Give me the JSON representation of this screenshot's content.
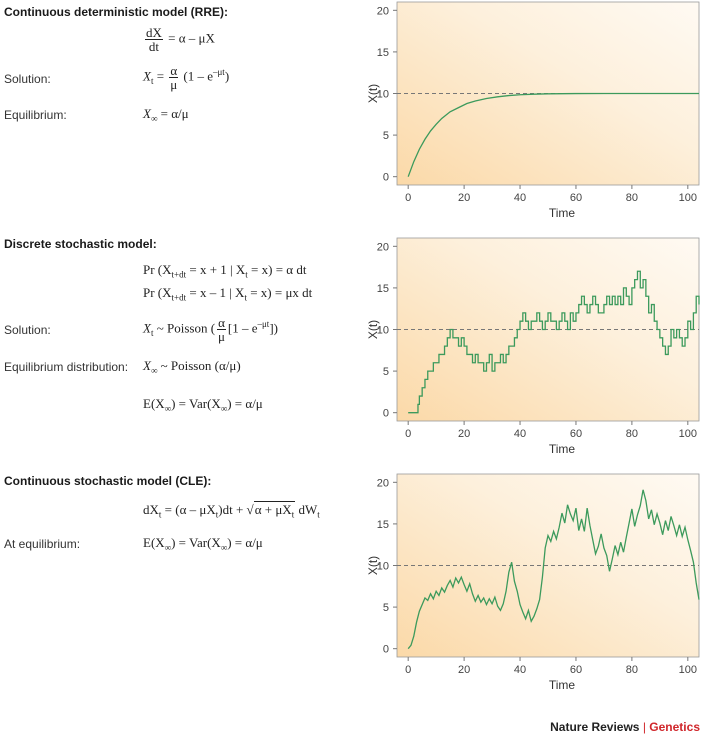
{
  "sections": [
    {
      "title": "Continuous deterministic model (RRE):",
      "solution_label": "Solution:",
      "equilibrium_label": "Equilibrium:",
      "ode_num": "dX",
      "ode_den": "dt",
      "ode_rhs": "= α – μX",
      "sol_lhs": "X",
      "sol_sub": "t",
      "sol_mid": "=",
      "sol_num": "α",
      "sol_den": "μ",
      "sol_rest": "(1 – e",
      "sol_sup": "–μt",
      "sol_close": ")",
      "eq_text": "= α/μ",
      "eq_lhs": "X",
      "eq_sub": "∞"
    },
    {
      "title": "Discrete stochastic model:",
      "solution_label": "Solution:",
      "equilibrium_label": "Equilibrium distribution:",
      "pr1_a": "Pr (X",
      "pr1_sub": "t+dt",
      "pr1_b": " = x + 1 | X",
      "pr1_sub2": "t",
      "pr1_c": " = x) = α dt",
      "pr2_a": "Pr (X",
      "pr2_sub": "t+dt",
      "pr2_b": " = x – 1 | X",
      "pr2_sub2": "t",
      "pr2_c": " = x) = μx dt",
      "sol_lhs": "X",
      "sol_sub": "t",
      "sol_mid": " ~ Poisson ",
      "sol_num": "α",
      "sol_den": "μ",
      "sol_rest": "[1 – e",
      "sol_sup": "–μt",
      "sol_close": "]",
      "eqd_lhs": "X",
      "eqd_sub": "∞",
      "eqd_rest": " ~ Poisson (α/μ)",
      "ev_text": "E(X",
      "ev_sub": "∞",
      "ev_mid": ") = Var(X",
      "ev_sub2": "∞",
      "ev_end": ") = α/μ"
    },
    {
      "title": "Continuous stochastic model (CLE):",
      "equilibrium_label": "At equilibrium:",
      "cle_a": "dX",
      "cle_sub": "t",
      "cle_b": " = (α – μX",
      "cle_sub2": "t",
      "cle_c": ")dt + ",
      "cle_root_a": "α + μX",
      "cle_root_sub": "t",
      "cle_d": " dW",
      "cle_sub3": "t",
      "ev_text": "E(X",
      "ev_sub": "∞",
      "ev_mid": ") = Var(X",
      "ev_sub2": "∞",
      "ev_end": ") = α/μ"
    }
  ],
  "chart_data": [
    {
      "type": "line",
      "xlabel": "Time",
      "ylabel": "X(t)",
      "xlim": [
        -4,
        104
      ],
      "ylim": [
        -1,
        21
      ],
      "xticks": [
        0,
        20,
        40,
        60,
        80,
        100
      ],
      "yticks": [
        0,
        5,
        10,
        15,
        20
      ],
      "equilibrium": 10,
      "series": [
        {
          "x": [
            0,
            2,
            4,
            6,
            8,
            10,
            12,
            15,
            18,
            21,
            24,
            28,
            32,
            36,
            40,
            45,
            50,
            60,
            70,
            80,
            90,
            100,
            104
          ],
          "y": [
            0,
            1.8,
            3.3,
            4.5,
            5.5,
            6.3,
            7.0,
            7.8,
            8.3,
            8.8,
            9.1,
            9.4,
            9.6,
            9.75,
            9.85,
            9.92,
            9.96,
            9.99,
            10,
            10,
            10,
            10,
            10
          ]
        }
      ],
      "color": "#3c9a5c"
    },
    {
      "type": "line",
      "step": true,
      "xlabel": "Time",
      "ylabel": "X(t)",
      "xlim": [
        -4,
        104
      ],
      "ylim": [
        -1,
        21
      ],
      "xticks": [
        0,
        20,
        40,
        60,
        80,
        100
      ],
      "yticks": [
        0,
        5,
        10,
        15,
        20
      ],
      "equilibrium": 10,
      "series": [
        {
          "x": [
            0,
            3,
            3.5,
            4,
            5,
            6,
            7,
            8,
            9,
            10,
            11,
            12,
            13,
            14,
            15,
            16,
            17,
            18,
            19,
            20,
            21,
            22,
            23,
            24,
            25,
            26,
            27,
            28,
            29,
            30,
            31,
            32,
            33,
            34,
            35,
            36,
            37,
            38,
            39,
            40,
            41,
            42,
            43,
            44,
            45,
            46,
            47,
            48,
            49,
            50,
            51,
            52,
            53,
            54,
            55,
            56,
            57,
            58,
            59,
            60,
            61,
            62,
            63,
            64,
            65,
            66,
            67,
            68,
            69,
            70,
            71,
            72,
            73,
            74,
            75,
            76,
            77,
            78,
            79,
            80,
            81,
            82,
            83,
            84,
            85,
            86,
            87,
            88,
            89,
            90,
            91,
            92,
            93,
            94,
            95,
            96,
            97,
            98,
            99,
            100,
            101,
            102,
            103,
            104
          ],
          "y": [
            0,
            0,
            1,
            2,
            3,
            4,
            5,
            5,
            6,
            6,
            7,
            7,
            8,
            9,
            10,
            9,
            9,
            8,
            9,
            8,
            7,
            7,
            6,
            7,
            6,
            6,
            5,
            6,
            7,
            5,
            6,
            6,
            7,
            6,
            7,
            8,
            8,
            9,
            10,
            11,
            12,
            11,
            10,
            11,
            11,
            12,
            11,
            10,
            11,
            12,
            11,
            11,
            10,
            11,
            12,
            11,
            10,
            12,
            11,
            12,
            13,
            14,
            13,
            12,
            13,
            14,
            13,
            12,
            12,
            13,
            14,
            13,
            14,
            13,
            14,
            13,
            15,
            14,
            13,
            15,
            16,
            17,
            15,
            16,
            14,
            12,
            13,
            11,
            10,
            9,
            8,
            7,
            8,
            10,
            9,
            10,
            9,
            8,
            9,
            11,
            10,
            12,
            14,
            13
          ]
        }
      ],
      "color": "#3c9a5c"
    },
    {
      "type": "line",
      "xlabel": "Time",
      "ylabel": "X(t)",
      "xlim": [
        -4,
        104
      ],
      "ylim": [
        -1,
        21
      ],
      "xticks": [
        0,
        20,
        40,
        60,
        80,
        100
      ],
      "yticks": [
        0,
        5,
        10,
        15,
        20
      ],
      "equilibrium": 10,
      "series": [
        {
          "x": [
            0,
            1,
            2,
            3,
            4,
            5,
            6,
            7,
            8,
            9,
            10,
            11,
            12,
            13,
            14,
            15,
            16,
            17,
            18,
            19,
            20,
            21,
            22,
            23,
            24,
            25,
            26,
            27,
            28,
            29,
            30,
            31,
            32,
            33,
            34,
            35,
            36,
            37,
            38,
            39,
            40,
            41,
            42,
            43,
            44,
            45,
            46,
            47,
            48,
            49,
            50,
            51,
            52,
            53,
            54,
            55,
            56,
            57,
            58,
            59,
            60,
            61,
            62,
            63,
            64,
            65,
            66,
            67,
            68,
            69,
            70,
            71,
            72,
            73,
            74,
            75,
            76,
            77,
            78,
            79,
            80,
            81,
            82,
            83,
            84,
            85,
            86,
            87,
            88,
            89,
            90,
            91,
            92,
            93,
            94,
            95,
            96,
            97,
            98,
            99,
            100,
            101,
            102,
            103,
            104
          ],
          "y": [
            0,
            0.4,
            1.5,
            3.2,
            4.5,
            5.3,
            6.1,
            5.8,
            6.6,
            6.0,
            6.9,
            6.4,
            7.3,
            6.8,
            7.6,
            8.2,
            7.4,
            8.5,
            7.9,
            8.6,
            7.7,
            6.9,
            7.8,
            6.6,
            5.7,
            6.4,
            5.6,
            6.1,
            5.3,
            6.0,
            5.4,
            6.2,
            5.1,
            4.6,
            5.4,
            6.9,
            9.2,
            10.4,
            8.1,
            6.9,
            5.3,
            4.4,
            3.6,
            4.6,
            3.3,
            3.9,
            4.8,
            5.9,
            8.6,
            12.1,
            13.6,
            12.9,
            14.1,
            13.2,
            14.6,
            16.3,
            15.1,
            17.3,
            16.2,
            15.4,
            16.9,
            14.2,
            15.6,
            14.1,
            16.9,
            14.8,
            13.1,
            11.4,
            12.3,
            13.8,
            12.1,
            11.2,
            9.3,
            10.8,
            12.4,
            11.3,
            12.8,
            11.6,
            13.4,
            15.1,
            16.8,
            14.7,
            16.1,
            17.2,
            19.1,
            17.8,
            15.6,
            16.7,
            14.9,
            16.2,
            15.1,
            13.7,
            15.4,
            14.2,
            15.9,
            14.8,
            13.6,
            14.9,
            13.5,
            14.6,
            13.1,
            11.8,
            10.4,
            7.9,
            5.9
          ]
        }
      ],
      "color": "#3c9a5c"
    }
  ],
  "footer": {
    "brand": "Nature Reviews",
    "separator": "|",
    "journal": "Genetics"
  }
}
